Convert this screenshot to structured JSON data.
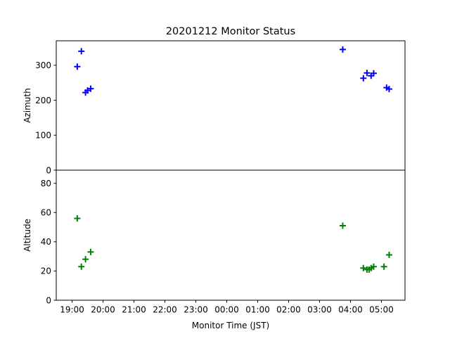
{
  "chart_data": {
    "type": "scatter",
    "title": "20201212 Monitor Status",
    "xlabel": "Monitor Time (JST)",
    "marker": "+",
    "x_ticks": [
      "19:00",
      "20:00",
      "21:00",
      "22:00",
      "23:00",
      "00:00",
      "01:00",
      "02:00",
      "03:00",
      "04:00",
      "05:00"
    ],
    "panels": [
      {
        "ylabel": "Azimuth",
        "ylim": [
          0,
          370
        ],
        "y_ticks": [
          0,
          100,
          200,
          300
        ],
        "color": "#0000ff",
        "x": [
          "19:10",
          "19:18",
          "19:26",
          "19:30",
          "19:36",
          "03:45",
          "04:25",
          "04:32",
          "04:40",
          "04:45",
          "05:10",
          "05:15"
        ],
        "y": [
          296,
          340,
          222,
          228,
          233,
          345,
          263,
          278,
          270,
          277,
          236,
          232
        ]
      },
      {
        "ylabel": "Altitude",
        "ylim": [
          0,
          89
        ],
        "y_ticks": [
          0,
          20,
          40,
          60,
          80
        ],
        "color": "#008000",
        "x": [
          "19:10",
          "19:18",
          "19:26",
          "19:36",
          "03:45",
          "04:25",
          "04:32",
          "04:36",
          "04:40",
          "04:45",
          "05:05",
          "05:15"
        ],
        "y": [
          56,
          23,
          28,
          33,
          51,
          22,
          21,
          21,
          22,
          23,
          23,
          31
        ]
      }
    ]
  }
}
